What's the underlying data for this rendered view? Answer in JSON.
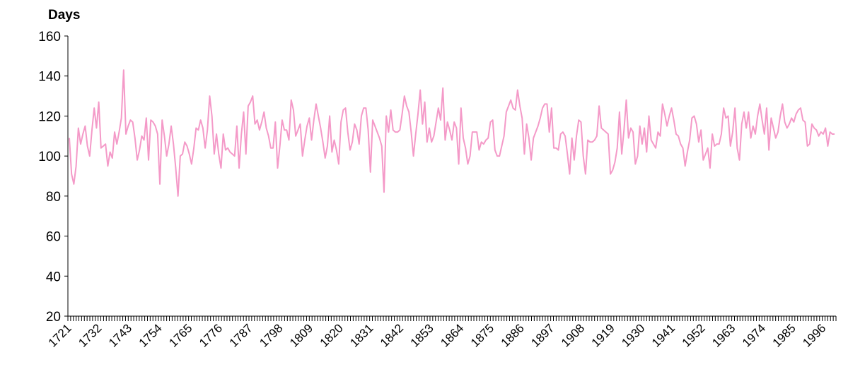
{
  "chart_data": {
    "type": "line",
    "title": "",
    "ylabel": "Days",
    "xlabel": "",
    "xlim": [
      1721,
      2001
    ],
    "ylim": [
      20,
      160
    ],
    "yticks": [
      20,
      40,
      60,
      80,
      100,
      120,
      140,
      160
    ],
    "xtick_labels": [
      "1721",
      "1732",
      "1743",
      "1754",
      "1765",
      "1776",
      "1787",
      "1798",
      "1809",
      "1820",
      "1831",
      "1842",
      "1853",
      "1864",
      "1875",
      "1886",
      "1897",
      "1908",
      "1919",
      "1930",
      "1941",
      "1952",
      "1963",
      "1974",
      "1985",
      "1996"
    ],
    "xtick_years": [
      1721,
      1732,
      1743,
      1754,
      1765,
      1776,
      1787,
      1798,
      1809,
      1820,
      1831,
      1842,
      1853,
      1864,
      1875,
      1886,
      1897,
      1908,
      1919,
      1930,
      1941,
      1952,
      1963,
      1974,
      1985,
      1996
    ],
    "grid": false,
    "legend": "none",
    "line_color": "#f49ac8",
    "series": [
      {
        "values": [
          109,
          91,
          86,
          95,
          114,
          106,
          111,
          115,
          105,
          100,
          113,
          124,
          114,
          127,
          104,
          105,
          106,
          95,
          102,
          99,
          112,
          106,
          112,
          119,
          143,
          111,
          115,
          118,
          117,
          109,
          98,
          103,
          110,
          108,
          119,
          98,
          118,
          117,
          115,
          111,
          86,
          118,
          110,
          100,
          106,
          115,
          106,
          94,
          80,
          100,
          101,
          107,
          105,
          101,
          96,
          104,
          114,
          113,
          118,
          114,
          104,
          113,
          130,
          120,
          101,
          111,
          101,
          94,
          111,
          103,
          104,
          102,
          101,
          100,
          115,
          94,
          111,
          122,
          101,
          125,
          127,
          130,
          116,
          118,
          113,
          117,
          122,
          114,
          110,
          104,
          104,
          117,
          94,
          105,
          118,
          113,
          113,
          108,
          128,
          123,
          110,
          113,
          116,
          100,
          108,
          115,
          119,
          108,
          118,
          126,
          120,
          114,
          107,
          99,
          105,
          120,
          102,
          108,
          103,
          96,
          117,
          123,
          124,
          112,
          103,
          107,
          116,
          113,
          106,
          120,
          124,
          124,
          113,
          92,
          118,
          115,
          112,
          109,
          105,
          82,
          120,
          112,
          123,
          113,
          112,
          112,
          113,
          121,
          130,
          125,
          122,
          112,
          100,
          111,
          121,
          133,
          116,
          127,
          107,
          114,
          107,
          110,
          117,
          124,
          118,
          134,
          108,
          117,
          113,
          108,
          117,
          114,
          96,
          124,
          109,
          104,
          96,
          100,
          112,
          112,
          112,
          103,
          107,
          106,
          108,
          109,
          117,
          118,
          103,
          100,
          100,
          105,
          110,
          122,
          125,
          128,
          124,
          123,
          133,
          125,
          119,
          101,
          116,
          109,
          98,
          109,
          112,
          115,
          119,
          124,
          126,
          126,
          112,
          124,
          104,
          104,
          103,
          111,
          112,
          110,
          101,
          91,
          109,
          98,
          110,
          118,
          117,
          100,
          91,
          108,
          107,
          107,
          108,
          110,
          125,
          114,
          113,
          112,
          111,
          91,
          93,
          97,
          104,
          122,
          101,
          113,
          128,
          109,
          114,
          112,
          96,
          100,
          115,
          106,
          114,
          102,
          120,
          108,
          106,
          104,
          112,
          110,
          126,
          121,
          115,
          120,
          124,
          118,
          111,
          110,
          106,
          104,
          95,
          102,
          108,
          119,
          120,
          116,
          107,
          113,
          98,
          101,
          104,
          94,
          111,
          105,
          106,
          106,
          111,
          124,
          119,
          120,
          105,
          112,
          124,
          104,
          98,
          116,
          122,
          114,
          122,
          109,
          115,
          111,
          120,
          126,
          118,
          111,
          124,
          103,
          119,
          114,
          109,
          112,
          120,
          126,
          117,
          114,
          116,
          119,
          117,
          121,
          123,
          124,
          118,
          117,
          105,
          106,
          116,
          114,
          113,
          110,
          112,
          111,
          114,
          105,
          112,
          111,
          111
        ]
      }
    ]
  }
}
